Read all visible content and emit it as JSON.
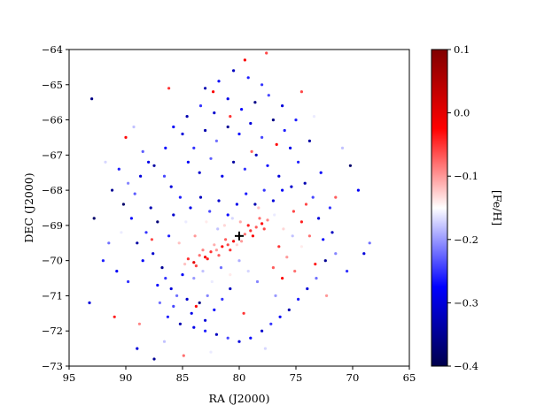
{
  "chart_data": {
    "type": "scatter",
    "title": "",
    "xlabel": "RA (J2000)",
    "ylabel": "DEC (J2000)",
    "xlim": [
      95,
      65
    ],
    "ylim": [
      -73,
      -64
    ],
    "x_ticks": [
      95,
      90,
      85,
      80,
      75,
      70,
      65
    ],
    "y_ticks": [
      -73,
      -72,
      -71,
      -70,
      -69,
      -68,
      -67,
      -66,
      -65,
      -64
    ],
    "x_tick_labels": [
      "95",
      "90",
      "85",
      "80",
      "75",
      "70",
      "65"
    ],
    "y_tick_labels": [
      "−73",
      "−72",
      "−71",
      "−70",
      "−69",
      "−68",
      "−67",
      "−66",
      "−65",
      "−64"
    ],
    "grid": false,
    "colorbar": {
      "label": "[Fe/H]",
      "range": [
        -0.4,
        0.1
      ],
      "ticks": [
        0.1,
        0.0,
        -0.1,
        -0.2,
        -0.3,
        -0.4
      ],
      "tick_labels": [
        "0.1",
        "0.0",
        "−0.1",
        "−0.2",
        "−0.3",
        "−0.4"
      ],
      "colormap": "seismic",
      "colors": [
        "#00004c",
        "#0000ff",
        "#ffffff",
        "#ff0000",
        "#800000"
      ]
    },
    "center_marker": {
      "ra": 80.0,
      "dec": -69.3,
      "symbol": "+",
      "color": "#000000"
    },
    "series": [
      {
        "points": [
          [
            84.5,
            -69.95,
            -0.05
          ],
          [
            84.0,
            -70.05,
            0.0
          ],
          [
            83.5,
            -69.85,
            -0.08
          ],
          [
            83.0,
            -69.9,
            -0.02
          ],
          [
            82.5,
            -69.75,
            -0.05
          ],
          [
            82.0,
            -69.7,
            -0.1
          ],
          [
            81.5,
            -69.6,
            -0.03
          ],
          [
            81.0,
            -69.55,
            -0.06
          ],
          [
            80.5,
            -69.45,
            -0.01
          ],
          [
            80.0,
            -69.3,
            -0.04
          ],
          [
            79.5,
            -69.25,
            -0.08
          ],
          [
            79.0,
            -69.15,
            -0.05
          ],
          [
            78.5,
            -69.05,
            -0.07
          ],
          [
            78.0,
            -68.95,
            -0.03
          ],
          [
            77.5,
            -68.85,
            -0.09
          ],
          [
            84.8,
            -70.1,
            -0.12
          ],
          [
            83.8,
            -70.15,
            -0.06
          ],
          [
            82.8,
            -69.95,
            -0.04
          ],
          [
            81.8,
            -69.85,
            -0.07
          ],
          [
            80.8,
            -69.7,
            -0.05
          ],
          [
            79.8,
            -69.45,
            -0.1
          ],
          [
            78.8,
            -69.3,
            -0.02
          ],
          [
            77.8,
            -69.1,
            -0.06
          ],
          [
            84.2,
            -69.8,
            -0.15
          ],
          [
            83.2,
            -69.7,
            -0.09
          ],
          [
            82.2,
            -69.55,
            -0.11
          ],
          [
            81.2,
            -69.4,
            -0.07
          ],
          [
            80.2,
            -69.55,
            -0.13
          ],
          [
            79.2,
            -69.0,
            -0.04
          ],
          [
            78.2,
            -68.8,
            -0.08
          ],
          [
            75.2,
            -68.6,
            -0.06
          ],
          [
            74.5,
            -68.9,
            -0.04
          ],
          [
            73.8,
            -69.3,
            -0.08
          ],
          [
            76.5,
            -69.6,
            -0.05
          ],
          [
            75.8,
            -69.9,
            -0.1
          ],
          [
            77.0,
            -70.2,
            -0.07
          ],
          [
            76.2,
            -70.5,
            -0.03
          ],
          [
            86.5,
            -70.5,
            -0.25
          ],
          [
            86.0,
            -70.8,
            -0.3
          ],
          [
            85.5,
            -71.0,
            -0.22
          ],
          [
            85.0,
            -70.4,
            -0.28
          ],
          [
            86.8,
            -70.2,
            -0.35
          ],
          [
            87.2,
            -70.7,
            -0.27
          ],
          [
            85.8,
            -71.3,
            -0.24
          ],
          [
            84.6,
            -71.1,
            -0.31
          ],
          [
            86.3,
            -71.6,
            -0.26
          ],
          [
            85.2,
            -71.8,
            -0.33
          ],
          [
            87.0,
            -71.2,
            -0.22
          ],
          [
            84.2,
            -71.5,
            -0.29
          ],
          [
            83.5,
            -71.2,
            -0.36
          ],
          [
            82.8,
            -71.0,
            -0.21
          ],
          [
            83.0,
            -71.7,
            -0.3
          ],
          [
            82.2,
            -71.4,
            -0.27
          ],
          [
            81.5,
            -71.1,
            -0.25
          ],
          [
            80.8,
            -70.8,
            -0.32
          ],
          [
            88.5,
            -70.0,
            -0.28
          ],
          [
            89.0,
            -69.5,
            -0.34
          ],
          [
            88.2,
            -69.2,
            -0.25
          ],
          [
            87.6,
            -69.8,
            -0.31
          ],
          [
            89.5,
            -68.8,
            -0.27
          ],
          [
            90.2,
            -68.4,
            -0.38
          ],
          [
            89.2,
            -68.1,
            -0.23
          ],
          [
            88.7,
            -67.6,
            -0.3
          ],
          [
            90.6,
            -67.4,
            -0.26
          ],
          [
            91.2,
            -68.0,
            -0.35
          ],
          [
            89.8,
            -67.8,
            -0.21
          ],
          [
            87.8,
            -68.5,
            -0.33
          ],
          [
            88.0,
            -67.2,
            -0.29
          ],
          [
            86.6,
            -67.6,
            -0.24
          ],
          [
            87.2,
            -68.9,
            -0.37
          ],
          [
            86.2,
            -69.3,
            -0.26
          ],
          [
            85.8,
            -68.7,
            -0.31
          ],
          [
            91.5,
            -69.5,
            -0.22
          ],
          [
            90.8,
            -70.3,
            -0.28
          ],
          [
            89.8,
            -70.6,
            -0.25
          ],
          [
            85.0,
            -66.4,
            -0.3
          ],
          [
            84.0,
            -66.8,
            -0.25
          ],
          [
            83.0,
            -66.3,
            -0.33
          ],
          [
            82.0,
            -66.6,
            -0.22
          ],
          [
            81.0,
            -66.2,
            -0.35
          ],
          [
            80.0,
            -66.4,
            -0.27
          ],
          [
            79.0,
            -66.1,
            -0.3
          ],
          [
            78.0,
            -66.5,
            -0.24
          ],
          [
            77.0,
            -66.0,
            -0.36
          ],
          [
            76.0,
            -66.3,
            -0.26
          ],
          [
            84.5,
            -67.2,
            -0.28
          ],
          [
            83.5,
            -67.5,
            -0.31
          ],
          [
            82.5,
            -67.1,
            -0.23
          ],
          [
            81.5,
            -67.6,
            -0.29
          ],
          [
            80.5,
            -67.2,
            -0.34
          ],
          [
            79.5,
            -67.4,
            -0.25
          ],
          [
            78.5,
            -67.0,
            -0.32
          ],
          [
            77.5,
            -67.3,
            -0.27
          ],
          [
            76.5,
            -67.6,
            -0.3
          ],
          [
            75.5,
            -66.8,
            -0.29
          ],
          [
            74.8,
            -67.2,
            -0.26
          ],
          [
            74.2,
            -67.8,
            -0.33
          ],
          [
            73.5,
            -68.2,
            -0.24
          ],
          [
            73.0,
            -68.8,
            -0.3
          ],
          [
            72.6,
            -69.4,
            -0.27
          ],
          [
            72.4,
            -70.0,
            -0.35
          ],
          [
            73.2,
            -70.5,
            -0.22
          ],
          [
            74.0,
            -70.8,
            -0.3
          ],
          [
            74.8,
            -71.1,
            -0.26
          ],
          [
            75.6,
            -71.4,
            -0.33
          ],
          [
            76.4,
            -71.6,
            -0.28
          ],
          [
            77.2,
            -71.8,
            -0.25
          ],
          [
            78.0,
            -72.0,
            -0.31
          ],
          [
            79.0,
            -72.2,
            -0.27
          ],
          [
            80.0,
            -72.3,
            -0.3
          ],
          [
            81.0,
            -72.2,
            -0.24
          ],
          [
            82.0,
            -72.1,
            -0.32
          ],
          [
            83.0,
            -72.0,
            -0.26
          ],
          [
            84.0,
            -71.9,
            -0.29
          ],
          [
            72.0,
            -68.5,
            -0.25
          ],
          [
            71.8,
            -69.2,
            -0.32
          ],
          [
            71.5,
            -69.8,
            -0.21
          ],
          [
            72.8,
            -67.5,
            -0.28
          ],
          [
            73.8,
            -66.6,
            -0.34
          ],
          [
            75.0,
            -66.0,
            -0.26
          ],
          [
            76.2,
            -65.6,
            -0.3
          ],
          [
            77.4,
            -65.3,
            -0.24
          ],
          [
            78.6,
            -65.5,
            -0.36
          ],
          [
            79.8,
            -65.7,
            -0.27
          ],
          [
            81.0,
            -65.4,
            -0.29
          ],
          [
            82.2,
            -65.8,
            -0.31
          ],
          [
            83.4,
            -65.6,
            -0.25
          ],
          [
            84.6,
            -65.9,
            -0.33
          ],
          [
            85.8,
            -66.2,
            -0.28
          ],
          [
            80.5,
            -64.6,
            -0.32
          ],
          [
            79.2,
            -64.8,
            -0.26
          ],
          [
            81.8,
            -64.9,
            -0.28
          ],
          [
            83.0,
            -65.1,
            -0.33
          ],
          [
            78.0,
            -65.0,
            -0.25
          ],
          [
            86.5,
            -66.8,
            -0.27
          ],
          [
            87.5,
            -67.3,
            -0.34
          ],
          [
            88.5,
            -66.9,
            -0.23
          ],
          [
            86.0,
            -67.9,
            -0.3
          ],
          [
            85.2,
            -68.2,
            -0.26
          ],
          [
            84.3,
            -68.5,
            -0.29
          ],
          [
            83.4,
            -68.2,
            -0.32
          ],
          [
            82.6,
            -68.6,
            -0.24
          ],
          [
            81.8,
            -68.3,
            -0.31
          ],
          [
            81.0,
            -68.7,
            -0.27
          ],
          [
            80.2,
            -68.4,
            -0.29
          ],
          [
            79.4,
            -68.1,
            -0.26
          ],
          [
            78.6,
            -68.4,
            -0.33
          ],
          [
            77.8,
            -68.0,
            -0.25
          ],
          [
            77.0,
            -68.3,
            -0.3
          ],
          [
            76.2,
            -68.0,
            -0.28
          ],
          [
            75.4,
            -67.9,
            -0.31
          ],
          [
            84.0,
            -70.5,
            -0.2
          ],
          [
            83.2,
            -70.3,
            -0.18
          ],
          [
            82.4,
            -70.6,
            -0.16
          ],
          [
            81.6,
            -70.2,
            -0.22
          ],
          [
            80.8,
            -70.4,
            -0.14
          ],
          [
            80.0,
            -70.0,
            -0.19
          ],
          [
            79.2,
            -70.3,
            -0.17
          ],
          [
            78.4,
            -70.6,
            -0.21
          ],
          [
            77.6,
            -70.9,
            -0.15
          ],
          [
            76.8,
            -71.0,
            -0.2
          ],
          [
            93.0,
            -65.4,
            -0.36
          ],
          [
            92.8,
            -68.8,
            -0.38
          ],
          [
            93.2,
            -71.2,
            -0.3
          ],
          [
            92.0,
            -70.0,
            -0.26
          ],
          [
            87.5,
            -72.8,
            -0.35
          ],
          [
            89.0,
            -72.5,
            -0.3
          ],
          [
            70.2,
            -67.3,
            -0.38
          ],
          [
            69.0,
            -69.8,
            -0.3
          ],
          [
            70.5,
            -70.3,
            -0.25
          ],
          [
            68.5,
            -69.5,
            -0.22
          ],
          [
            69.5,
            -68.0,
            -0.28
          ],
          [
            86.2,
            -65.1,
            -0.05
          ],
          [
            84.9,
            -72.7,
            -0.08
          ],
          [
            79.5,
            -64.3,
            -0.02
          ],
          [
            77.6,
            -64.1,
            -0.06
          ],
          [
            91.0,
            -71.6,
            -0.04
          ],
          [
            88.8,
            -71.8,
            -0.09
          ],
          [
            74.5,
            -65.2,
            -0.06
          ],
          [
            72.3,
            -71.0,
            -0.1
          ],
          [
            71.5,
            -68.2,
            -0.07
          ],
          [
            90.0,
            -66.5,
            -0.03
          ],
          [
            85.3,
            -69.5,
            -0.12
          ],
          [
            84.7,
            -68.9,
            -0.16
          ],
          [
            83.9,
            -69.3,
            -0.1
          ],
          [
            82.9,
            -68.9,
            -0.14
          ],
          [
            81.9,
            -69.1,
            -0.18
          ],
          [
            81.3,
            -69.0,
            -0.13
          ],
          [
            80.6,
            -68.8,
            -0.17
          ],
          [
            79.9,
            -68.9,
            -0.11
          ],
          [
            79.1,
            -68.6,
            -0.15
          ],
          [
            78.3,
            -68.5,
            -0.12
          ],
          [
            76.9,
            -68.7,
            -0.16
          ],
          [
            76.1,
            -69.1,
            -0.13
          ],
          [
            75.3,
            -69.3,
            -0.18
          ],
          [
            74.5,
            -69.6,
            -0.14
          ],
          [
            89.3,
            -66.2,
            -0.18
          ],
          [
            87.9,
            -66.1,
            -0.15
          ],
          [
            90.4,
            -69.2,
            -0.16
          ],
          [
            91.8,
            -67.2,
            -0.17
          ],
          [
            73.4,
            -65.9,
            -0.16
          ],
          [
            70.9,
            -66.8,
            -0.18
          ],
          [
            71.2,
            -71.3,
            -0.15
          ],
          [
            77.7,
            -72.5,
            -0.17
          ],
          [
            82.5,
            -72.6,
            -0.16
          ],
          [
            86.6,
            -72.3,
            -0.18
          ],
          [
            82.3,
            -65.2,
            -0.02
          ],
          [
            80.8,
            -65.9,
            -0.05
          ],
          [
            78.9,
            -66.9,
            -0.07
          ],
          [
            76.7,
            -66.7,
            -0.03
          ],
          [
            74.1,
            -68.4,
            -0.06
          ],
          [
            73.3,
            -70.1,
            -0.04
          ],
          [
            75.1,
            -70.3,
            -0.08
          ],
          [
            79.6,
            -71.5,
            -0.05
          ],
          [
            83.8,
            -71.3,
            -0.03
          ],
          [
            87.7,
            -69.4,
            -0.06
          ]
        ]
      }
    ]
  }
}
